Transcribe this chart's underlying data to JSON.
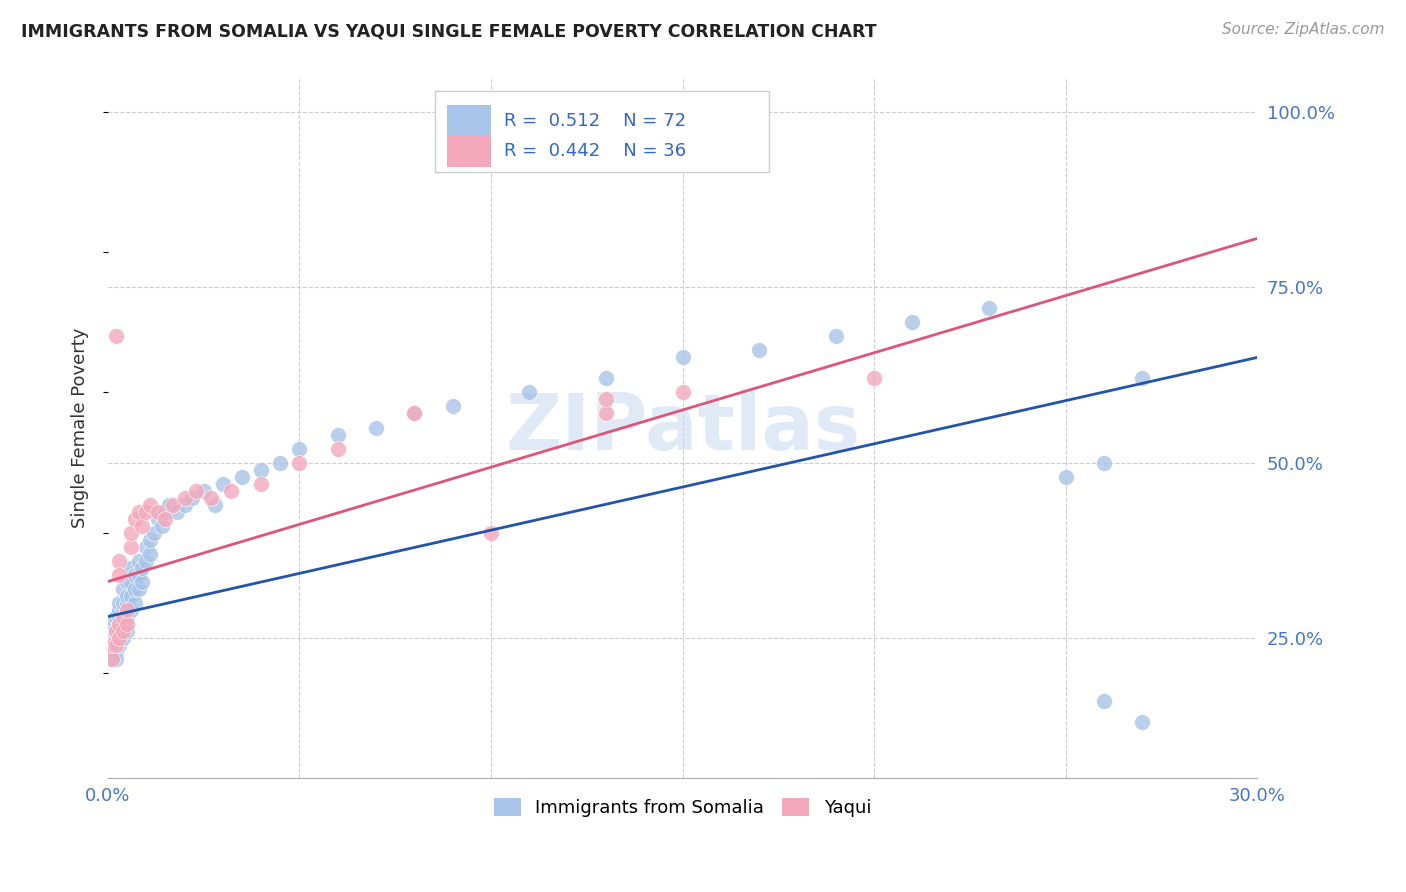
{
  "title": "IMMIGRANTS FROM SOMALIA VS YAQUI SINGLE FEMALE POVERTY CORRELATION CHART",
  "source": "Source: ZipAtlas.com",
  "ylabel": "Single Female Poverty",
  "ytick_labels": [
    "25.0%",
    "50.0%",
    "75.0%",
    "100.0%"
  ],
  "ytick_values": [
    0.25,
    0.5,
    0.75,
    1.0
  ],
  "xmin": 0.0,
  "xmax": 0.3,
  "ymin": 0.05,
  "ymax": 1.05,
  "legend_somalia_r": "0.512",
  "legend_somalia_n": "72",
  "legend_yaqui_r": "0.442",
  "legend_yaqui_n": "36",
  "color_somalia": "#a8c4e8",
  "color_yaqui": "#f4a8bc",
  "color_somalia_line": "#2255aa",
  "color_yaqui_line": "#dd5577",
  "watermark": "ZIPatlas",
  "somalia_line_x0": 0.0,
  "somalia_line_y0": 0.28,
  "somalia_line_x1": 0.3,
  "somalia_line_y1": 0.65,
  "yaqui_line_x0": 0.0,
  "yaqui_line_y0": 0.33,
  "yaqui_line_x1": 0.3,
  "yaqui_line_y1": 0.82,
  "somalia_x": [
    0.001,
    0.001,
    0.001,
    0.001,
    0.002,
    0.002,
    0.002,
    0.002,
    0.002,
    0.003,
    0.003,
    0.003,
    0.003,
    0.003,
    0.003,
    0.004,
    0.004,
    0.004,
    0.004,
    0.004,
    0.005,
    0.005,
    0.005,
    0.005,
    0.005,
    0.006,
    0.006,
    0.006,
    0.006,
    0.007,
    0.007,
    0.007,
    0.008,
    0.008,
    0.008,
    0.009,
    0.009,
    0.01,
    0.01,
    0.011,
    0.011,
    0.012,
    0.013,
    0.014,
    0.015,
    0.016,
    0.018,
    0.02,
    0.022,
    0.025,
    0.028,
    0.03,
    0.035,
    0.04,
    0.045,
    0.05,
    0.06,
    0.07,
    0.08,
    0.09,
    0.11,
    0.13,
    0.15,
    0.17,
    0.19,
    0.21,
    0.23,
    0.25,
    0.26,
    0.27,
    0.26,
    0.27
  ],
  "somalia_y": [
    0.22,
    0.24,
    0.25,
    0.27,
    0.23,
    0.25,
    0.26,
    0.28,
    0.22,
    0.24,
    0.26,
    0.27,
    0.28,
    0.29,
    0.3,
    0.25,
    0.27,
    0.29,
    0.3,
    0.32,
    0.26,
    0.28,
    0.3,
    0.31,
    0.33,
    0.29,
    0.31,
    0.33,
    0.35,
    0.3,
    0.32,
    0.34,
    0.32,
    0.34,
    0.36,
    0.33,
    0.35,
    0.36,
    0.38,
    0.37,
    0.39,
    0.4,
    0.42,
    0.41,
    0.43,
    0.44,
    0.43,
    0.44,
    0.45,
    0.46,
    0.44,
    0.47,
    0.48,
    0.49,
    0.5,
    0.52,
    0.54,
    0.55,
    0.57,
    0.58,
    0.6,
    0.62,
    0.65,
    0.66,
    0.68,
    0.7,
    0.72,
    0.48,
    0.5,
    0.13,
    0.16,
    0.62
  ],
  "yaqui_x": [
    0.001,
    0.001,
    0.002,
    0.002,
    0.003,
    0.003,
    0.004,
    0.004,
    0.005,
    0.005,
    0.006,
    0.006,
    0.007,
    0.008,
    0.009,
    0.01,
    0.011,
    0.013,
    0.015,
    0.017,
    0.02,
    0.023,
    0.027,
    0.032,
    0.04,
    0.05,
    0.06,
    0.08,
    0.1,
    0.13,
    0.15,
    0.2,
    0.13,
    0.002,
    0.003,
    0.003
  ],
  "yaqui_y": [
    0.22,
    0.24,
    0.24,
    0.26,
    0.25,
    0.27,
    0.26,
    0.28,
    0.27,
    0.29,
    0.38,
    0.4,
    0.42,
    0.43,
    0.41,
    0.43,
    0.44,
    0.43,
    0.42,
    0.44,
    0.45,
    0.46,
    0.45,
    0.46,
    0.47,
    0.5,
    0.52,
    0.57,
    0.4,
    0.57,
    0.6,
    0.62,
    0.59,
    0.68,
    0.36,
    0.34
  ]
}
